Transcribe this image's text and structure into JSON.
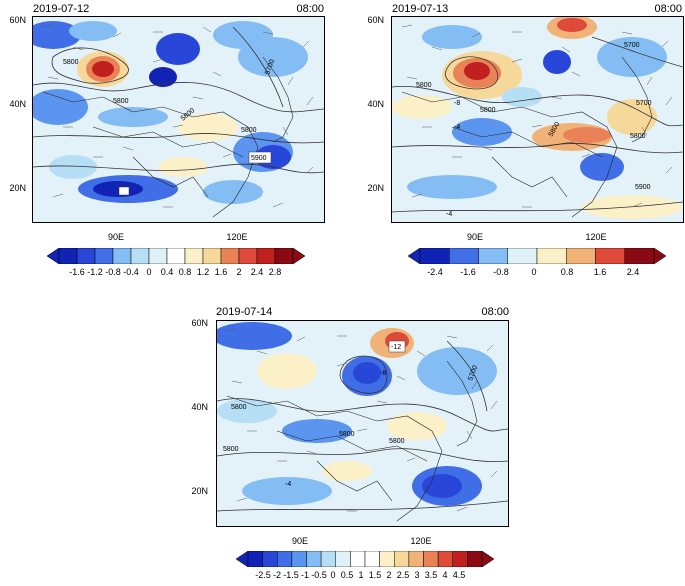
{
  "panels": [
    {
      "date": "2019-07-12",
      "time": "08:00",
      "lat_labels": [
        "60N",
        "40N",
        "20N"
      ],
      "lon_labels": [
        "90E",
        "120E"
      ],
      "contour_labels": [
        "5800",
        "5800",
        "5700",
        "5800",
        "5900",
        "5800"
      ],
      "colorbar_ticks": [
        "-1.6",
        "-1.2",
        "-0.8",
        "-0.4",
        "0",
        "0.4",
        "0.8",
        "1.2",
        "1.6",
        "2",
        "2.4",
        "2.8"
      ]
    },
    {
      "date": "2019-07-13",
      "time": "08:00",
      "lat_labels": [
        "60N",
        "40N",
        "20N"
      ],
      "lon_labels": [
        "90E",
        "120E"
      ],
      "contour_labels": [
        "5700",
        "5800",
        "5800",
        "-8",
        "-4",
        "5800",
        "5700",
        "5800",
        "5900",
        "-4"
      ],
      "colorbar_ticks": [
        "-2.4",
        "-1.6",
        "-0.8",
        "0",
        "0.8",
        "1.6",
        "2.4"
      ]
    },
    {
      "date": "2019-07-14",
      "time": "08:00",
      "lat_labels": [
        "60N",
        "40N",
        "20N"
      ],
      "lon_labels": [
        "90E",
        "120E"
      ],
      "contour_labels": [
        "-12",
        "-8",
        "5700",
        "5800",
        "5800",
        "5800",
        "5800",
        "-4"
      ],
      "colorbar_ticks": [
        "-2.5",
        "-2",
        "-1.5",
        "-1",
        "-0.5",
        "0",
        "0.5",
        "1",
        "1.5",
        "2",
        "2.5",
        "3",
        "3.5",
        "4",
        "4.5"
      ]
    }
  ],
  "colors": {
    "scale": [
      "#1023b5",
      "#2846d8",
      "#3f6ee6",
      "#5b95ef",
      "#84bdf4",
      "#b6def5",
      "#dff2f7",
      "#ffffff",
      "#fbf0c8",
      "#f5d89a",
      "#f0b276",
      "#ea8257",
      "#dd4a3a",
      "#c0201f",
      "#8a0a14"
    ]
  }
}
